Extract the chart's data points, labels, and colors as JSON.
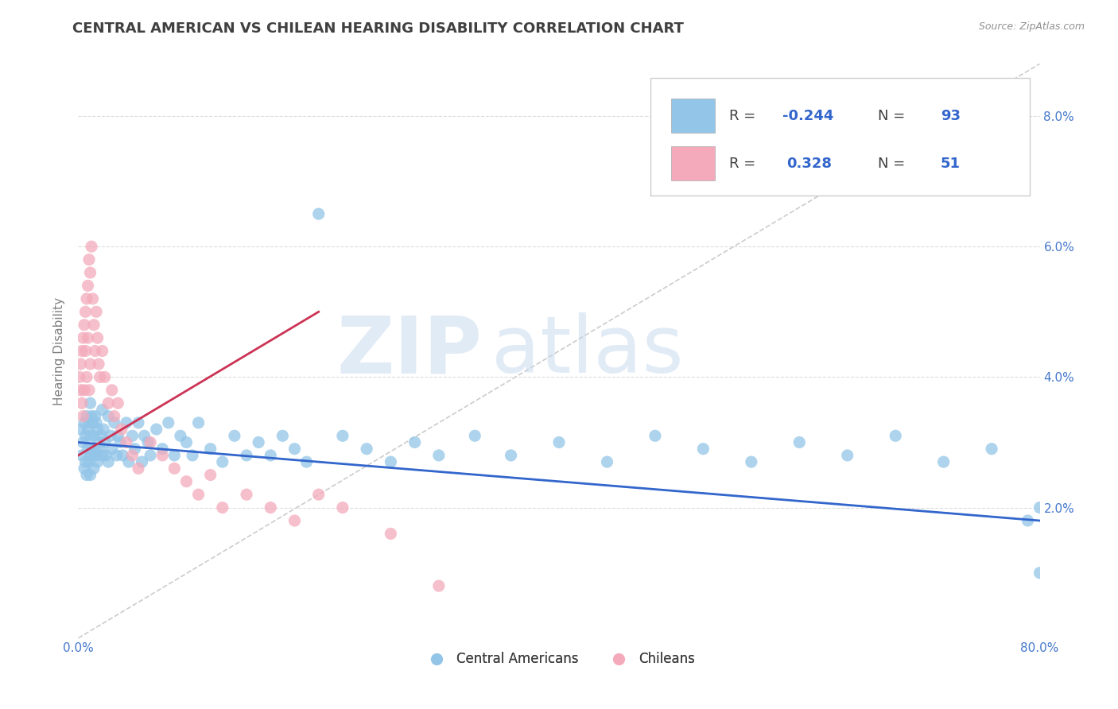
{
  "title": "CENTRAL AMERICAN VS CHILEAN HEARING DISABILITY CORRELATION CHART",
  "source": "Source: ZipAtlas.com",
  "ylabel": "Hearing Disability",
  "xlim": [
    0.0,
    0.8
  ],
  "ylim": [
    0.0,
    0.088
  ],
  "xticks": [
    0.0,
    0.1,
    0.2,
    0.3,
    0.4,
    0.5,
    0.6,
    0.7,
    0.8
  ],
  "xticklabels": [
    "0.0%",
    "",
    "",
    "",
    "",
    "",
    "",
    "",
    "80.0%"
  ],
  "yticks": [
    0.0,
    0.02,
    0.04,
    0.06,
    0.08
  ],
  "yticklabels_right": [
    "",
    "2.0%",
    "4.0%",
    "6.0%",
    "8.0%"
  ],
  "blue_color": "#92C5E8",
  "pink_color": "#F4AABB",
  "blue_line_color": "#3366CC",
  "pink_line_color": "#CC3355",
  "dashed_color": "#CCCCCC",
  "watermark_zip": "ZIP",
  "watermark_atlas": "atlas",
  "legend_R_blue": "-0.244",
  "legend_N_blue": "93",
  "legend_R_pink": "0.328",
  "legend_N_pink": "51",
  "blue_scatter_x": [
    0.002,
    0.003,
    0.004,
    0.005,
    0.005,
    0.006,
    0.006,
    0.007,
    0.007,
    0.008,
    0.008,
    0.009,
    0.009,
    0.01,
    0.01,
    0.01,
    0.01,
    0.011,
    0.011,
    0.012,
    0.012,
    0.013,
    0.013,
    0.014,
    0.014,
    0.015,
    0.015,
    0.016,
    0.016,
    0.017,
    0.018,
    0.019,
    0.02,
    0.02,
    0.021,
    0.022,
    0.023,
    0.025,
    0.025,
    0.027,
    0.028,
    0.03,
    0.032,
    0.033,
    0.035,
    0.037,
    0.04,
    0.042,
    0.045,
    0.047,
    0.05,
    0.053,
    0.055,
    0.058,
    0.06,
    0.065,
    0.07,
    0.075,
    0.08,
    0.085,
    0.09,
    0.095,
    0.1,
    0.11,
    0.12,
    0.13,
    0.14,
    0.15,
    0.16,
    0.17,
    0.18,
    0.19,
    0.2,
    0.22,
    0.24,
    0.26,
    0.28,
    0.3,
    0.33,
    0.36,
    0.4,
    0.44,
    0.48,
    0.52,
    0.56,
    0.6,
    0.64,
    0.68,
    0.72,
    0.76,
    0.8,
    0.8,
    0.79
  ],
  "blue_scatter_y": [
    0.032,
    0.028,
    0.03,
    0.033,
    0.026,
    0.031,
    0.027,
    0.034,
    0.025,
    0.032,
    0.029,
    0.033,
    0.027,
    0.036,
    0.031,
    0.028,
    0.025,
    0.034,
    0.029,
    0.033,
    0.028,
    0.031,
    0.026,
    0.034,
    0.029,
    0.033,
    0.028,
    0.032,
    0.027,
    0.03,
    0.029,
    0.031,
    0.035,
    0.028,
    0.032,
    0.03,
    0.028,
    0.034,
    0.027,
    0.031,
    0.029,
    0.033,
    0.028,
    0.031,
    0.03,
    0.028,
    0.033,
    0.027,
    0.031,
    0.029,
    0.033,
    0.027,
    0.031,
    0.03,
    0.028,
    0.032,
    0.029,
    0.033,
    0.028,
    0.031,
    0.03,
    0.028,
    0.033,
    0.029,
    0.027,
    0.031,
    0.028,
    0.03,
    0.028,
    0.031,
    0.029,
    0.027,
    0.065,
    0.031,
    0.029,
    0.027,
    0.03,
    0.028,
    0.031,
    0.028,
    0.03,
    0.027,
    0.031,
    0.029,
    0.027,
    0.03,
    0.028,
    0.031,
    0.027,
    0.029,
    0.02,
    0.01,
    0.018
  ],
  "pink_scatter_x": [
    0.001,
    0.002,
    0.002,
    0.003,
    0.003,
    0.004,
    0.004,
    0.005,
    0.005,
    0.006,
    0.006,
    0.007,
    0.007,
    0.008,
    0.008,
    0.009,
    0.009,
    0.01,
    0.01,
    0.011,
    0.012,
    0.013,
    0.014,
    0.015,
    0.016,
    0.017,
    0.018,
    0.02,
    0.022,
    0.025,
    0.028,
    0.03,
    0.033,
    0.036,
    0.04,
    0.045,
    0.05,
    0.06,
    0.07,
    0.08,
    0.09,
    0.1,
    0.12,
    0.14,
    0.16,
    0.18,
    0.2,
    0.22,
    0.26,
    0.3,
    0.11
  ],
  "pink_scatter_y": [
    0.04,
    0.042,
    0.038,
    0.044,
    0.036,
    0.046,
    0.034,
    0.048,
    0.038,
    0.05,
    0.044,
    0.052,
    0.04,
    0.054,
    0.046,
    0.058,
    0.038,
    0.056,
    0.042,
    0.06,
    0.052,
    0.048,
    0.044,
    0.05,
    0.046,
    0.042,
    0.04,
    0.044,
    0.04,
    0.036,
    0.038,
    0.034,
    0.036,
    0.032,
    0.03,
    0.028,
    0.026,
    0.03,
    0.028,
    0.026,
    0.024,
    0.022,
    0.02,
    0.022,
    0.02,
    0.018,
    0.022,
    0.02,
    0.016,
    0.008,
    0.025
  ],
  "background_color": "#FFFFFF",
  "title_color": "#404040",
  "title_fontsize": 13,
  "axis_label_color": "#808080",
  "tick_label_color": "#4477CC",
  "tick_color": "#AAAAAA",
  "grid_color": "#DDDDDD",
  "legend_value_color": "#3366CC"
}
